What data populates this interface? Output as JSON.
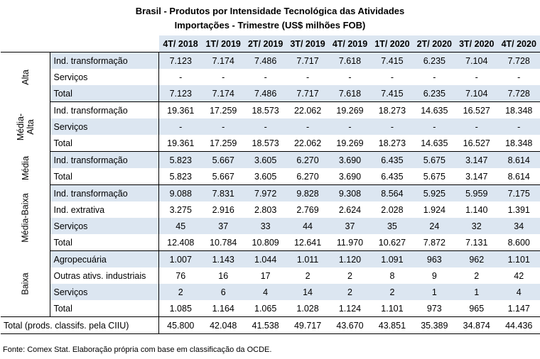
{
  "title_line1": "Brasil - Produtos por Intensidade Tecnológica das Atividades",
  "title_line2": "Importações - Trimestre (US$ milhões FOB)",
  "periods": [
    "4T/ 2018",
    "1T/ 2019",
    "2T/ 2019",
    "3T/ 2019",
    "4T/ 2019",
    "1T/ 2020",
    "2T/ 2020",
    "3T/ 2020",
    "4T/ 2020"
  ],
  "groups": [
    {
      "name": "Alta",
      "rows": [
        {
          "label": "Ind. transformação",
          "values": [
            "7.123",
            "7.174",
            "7.486",
            "7.717",
            "7.618",
            "7.415",
            "6.235",
            "7.104",
            "7.728"
          ]
        },
        {
          "label": "Serviços",
          "values": [
            "-",
            "-",
            "-",
            "-",
            "-",
            "-",
            "-",
            "-",
            "-"
          ]
        },
        {
          "label": "Total",
          "values": [
            "7.123",
            "7.174",
            "7.486",
            "7.717",
            "7.618",
            "7.415",
            "6.235",
            "7.104",
            "7.728"
          ]
        }
      ]
    },
    {
      "name": "Média-Alta",
      "rows": [
        {
          "label": "Ind. transformação",
          "values": [
            "19.361",
            "17.259",
            "18.573",
            "22.062",
            "19.269",
            "18.273",
            "14.635",
            "16.527",
            "18.348"
          ]
        },
        {
          "label": "Serviços",
          "values": [
            "-",
            "-",
            "-",
            "-",
            "-",
            "-",
            "-",
            "-",
            "-"
          ]
        },
        {
          "label": "Total",
          "values": [
            "19.361",
            "17.259",
            "18.573",
            "22.062",
            "19.269",
            "18.273",
            "14.635",
            "16.527",
            "18.348"
          ]
        }
      ]
    },
    {
      "name": "Média",
      "rows": [
        {
          "label": "Ind. transformação",
          "values": [
            "5.823",
            "5.667",
            "3.605",
            "6.270",
            "3.690",
            "6.435",
            "5.675",
            "3.147",
            "8.614"
          ]
        },
        {
          "label": "Total",
          "values": [
            "5.823",
            "5.667",
            "3.605",
            "6.270",
            "3.690",
            "6.435",
            "5.675",
            "3.147",
            "8.614"
          ]
        }
      ]
    },
    {
      "name": "Média-Baixa",
      "rows": [
        {
          "label": "Ind. transformação",
          "values": [
            "9.088",
            "7.831",
            "7.972",
            "9.828",
            "9.308",
            "8.564",
            "5.925",
            "5.959",
            "7.175"
          ]
        },
        {
          "label": "Ind. extrativa",
          "values": [
            "3.275",
            "2.916",
            "2.803",
            "2.769",
            "2.624",
            "2.028",
            "1.924",
            "1.140",
            "1.391"
          ]
        },
        {
          "label": "Serviços",
          "values": [
            "45",
            "37",
            "33",
            "44",
            "37",
            "35",
            "24",
            "32",
            "34"
          ]
        },
        {
          "label": "Total",
          "values": [
            "12.408",
            "10.784",
            "10.809",
            "12.641",
            "11.970",
            "10.627",
            "7.872",
            "7.131",
            "8.600"
          ]
        }
      ]
    },
    {
      "name": "Baixa",
      "rows": [
        {
          "label": "Agropecuária",
          "values": [
            "1.007",
            "1.143",
            "1.044",
            "1.011",
            "1.120",
            "1.091",
            "963",
            "962",
            "1.101"
          ]
        },
        {
          "label": "Outras ativs. industriais",
          "values": [
            "76",
            "16",
            "17",
            "2",
            "2",
            "8",
            "9",
            "2",
            "42"
          ]
        },
        {
          "label": "Serviços",
          "values": [
            "2",
            "6",
            "4",
            "14",
            "2",
            "2",
            "1",
            "1",
            "4"
          ]
        },
        {
          "label": "Total",
          "values": [
            "1.085",
            "1.164",
            "1.065",
            "1.028",
            "1.124",
            "1.101",
            "973",
            "965",
            "1.147"
          ]
        }
      ]
    }
  ],
  "grand_total": {
    "label": "Total (prods. classifs. pela CIIU)",
    "values": [
      "45.800",
      "42.048",
      "41.538",
      "49.717",
      "43.670",
      "43.851",
      "35.389",
      "34.874",
      "44.436"
    ]
  },
  "source": "Fonte: Comex Stat. Elaboração própria com base em classificação da OCDE.",
  "colors": {
    "header_fill": "#dce6f1",
    "row_shade": "#dce6f1",
    "rule": "#000000"
  }
}
